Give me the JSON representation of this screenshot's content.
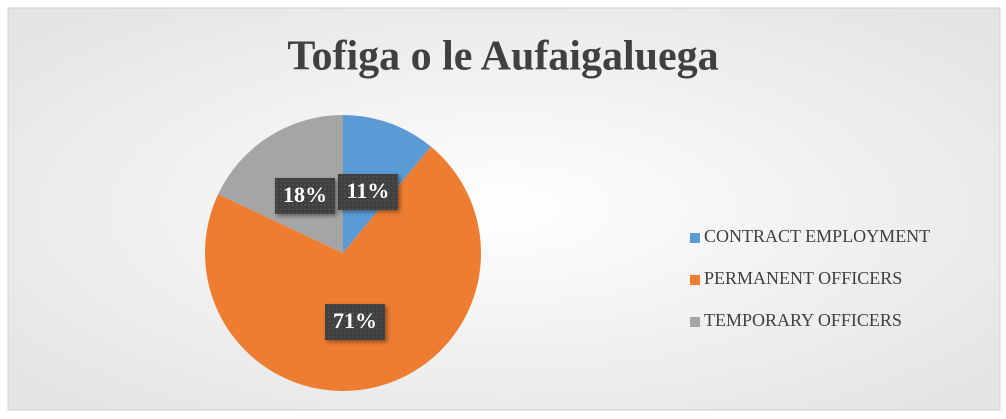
{
  "chart_data": {
    "type": "pie",
    "title": "Tofiga o le Aufaigaluega",
    "categories": [
      "CONTRACT EMPLOYMENT",
      "PERMANENT OFFICERS",
      "TEMPORARY OFFICERS"
    ],
    "values": [
      11,
      71,
      18
    ],
    "value_labels": [
      "11%",
      "71%",
      "18%"
    ],
    "colors": [
      "#5b9bd5",
      "#ed7d31",
      "#a5a5a5"
    ],
    "legend": "right"
  }
}
